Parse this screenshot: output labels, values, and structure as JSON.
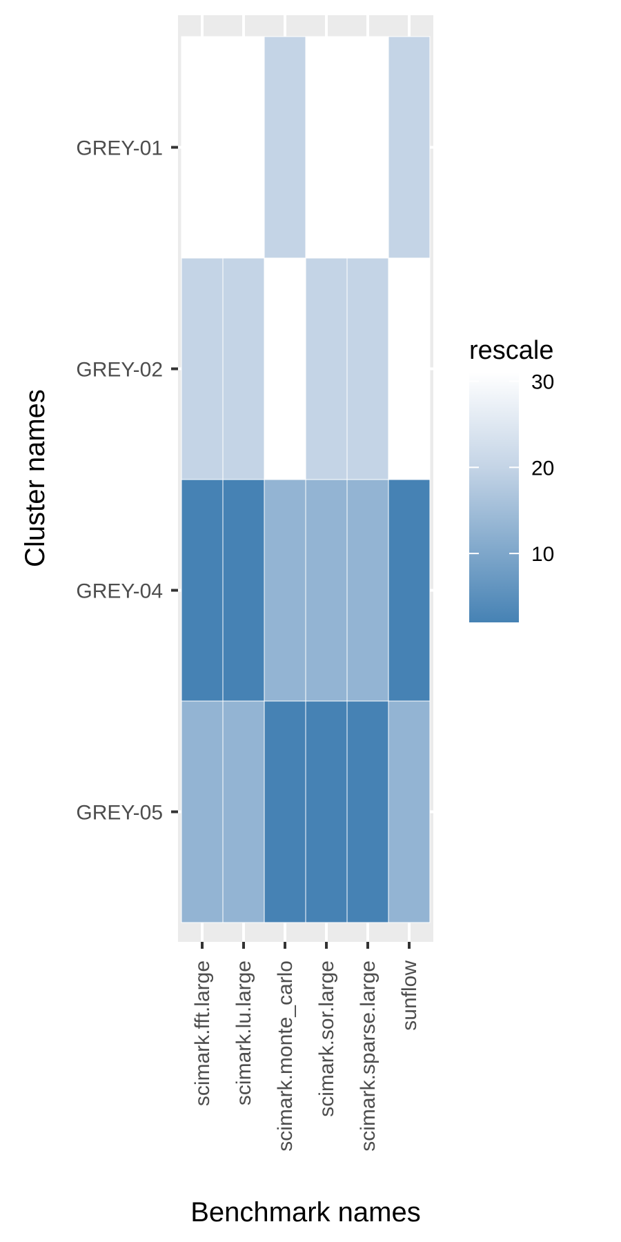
{
  "chart_data": {
    "type": "heatmap",
    "xlabel": "Benchmark names",
    "ylabel": "Cluster names",
    "x_categories": [
      "scimark.fft.large",
      "scimark.lu.large",
      "scimark.monte_carlo",
      "scimark.sor.large",
      "scimark.sparse.large",
      "sunflow"
    ],
    "y_categories": [
      "GREY-01",
      "GREY-02",
      "GREY-04",
      "GREY-05"
    ],
    "values": [
      [
        31,
        31,
        20,
        31,
        31,
        20
      ],
      [
        20,
        20,
        31,
        20,
        20,
        31
      ],
      [
        2,
        2,
        13,
        13,
        13,
        2
      ],
      [
        13,
        13,
        2,
        2,
        2,
        13
      ]
    ],
    "legend": {
      "title": "rescale",
      "ticks": [
        10,
        20,
        30
      ],
      "range": [
        2,
        31
      ],
      "colors": {
        "low": "#4682b4",
        "mid": "#c4d4e6",
        "high": "#ffffff"
      },
      "position": "right"
    },
    "panel_background": "#ebebeb",
    "grid": true
  }
}
